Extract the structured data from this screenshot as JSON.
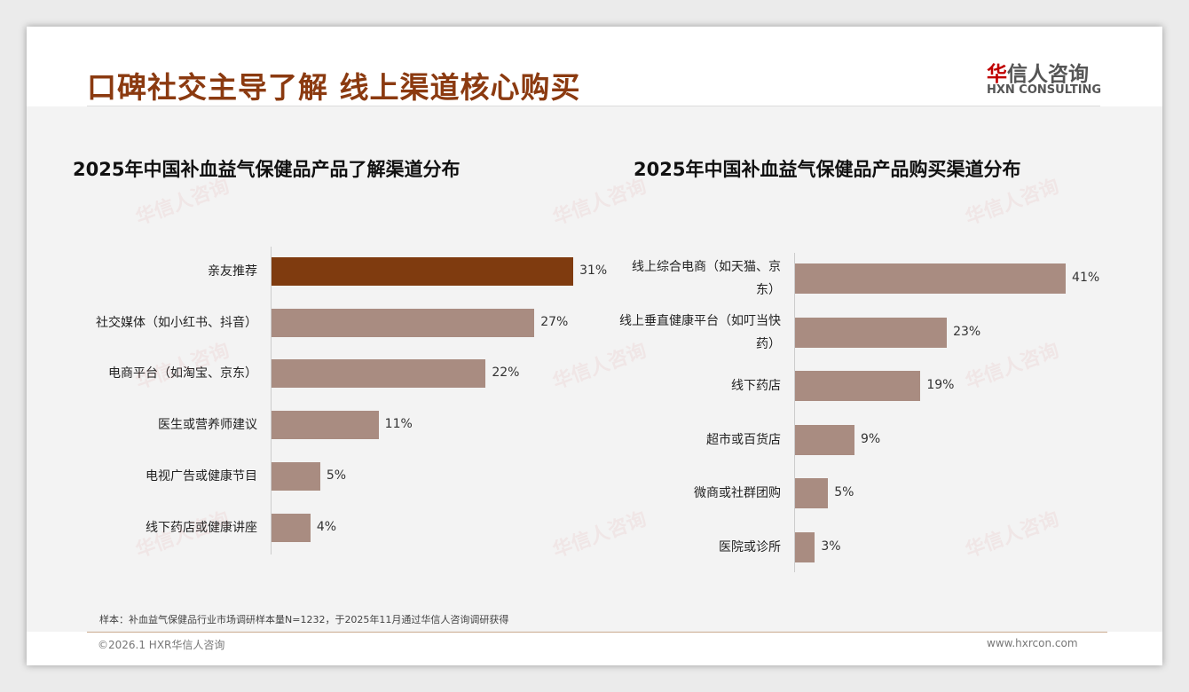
{
  "header": {
    "title": "口碑社交主导了解 线上渠道核心购买",
    "logo_cn_first": "华",
    "logo_cn_rest": "信人咨询",
    "logo_en": "HXN CONSULTING"
  },
  "chart_data": [
    {
      "type": "bar",
      "orientation": "horizontal",
      "title": "2025年中国补血益气保健品产品了解渠道分布",
      "categories": [
        "亲友推荐",
        "社交媒体（如小红书、抖音）",
        "电商平台（如淘宝、京东）",
        "医生或营养师建议",
        "电视广告或健康节目",
        "线下药店或健康讲座"
      ],
      "values": [
        31,
        27,
        22,
        11,
        5,
        4
      ],
      "labels": [
        "31%",
        "27%",
        "22%",
        "11%",
        "5%",
        "4%"
      ],
      "highlight_index": 0,
      "unit": "%"
    },
    {
      "type": "bar",
      "orientation": "horizontal",
      "title": "2025年中国补血益气保健品产品购买渠道分布",
      "categories": [
        "线上综合电商（如天猫、京东）",
        "线上垂直健康平台（如叮当快药）",
        "线下药店",
        "超市或百货店",
        "微商或社群团购",
        "医院或诊所"
      ],
      "values": [
        41,
        23,
        19,
        9,
        5,
        3
      ],
      "labels": [
        "41%",
        "23%",
        "19%",
        "9%",
        "5%",
        "3%"
      ],
      "unit": "%"
    }
  ],
  "colors": {
    "bar": "#a98c81",
    "highlight": "#7f3b0f",
    "arrow": "#ed7d31",
    "title": "#8b3a10"
  },
  "footer": {
    "note": "样本：补血益气保健品行业市场调研样本量N=1232，于2025年11月通过华信人咨询调研获得",
    "copyright": "©2026.1 HXR华信人咨询",
    "url": "www.hxrcon.com"
  }
}
